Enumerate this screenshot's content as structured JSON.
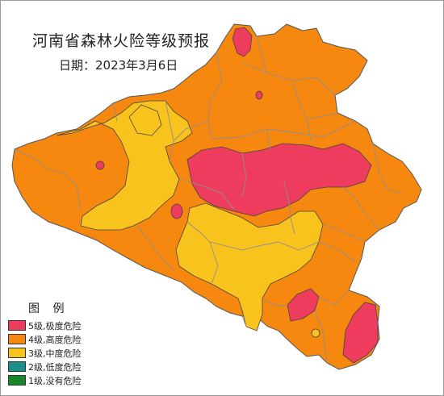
{
  "map": {
    "title": "河南省森林火险等级预报",
    "date_text": "日期：2023年3月6日"
  },
  "legend": {
    "title": "图 例",
    "items": [
      {
        "label": "5级,极度危险",
        "color": "#ee3c5e"
      },
      {
        "label": "4级,高度危险",
        "color": "#f6870f"
      },
      {
        "label": "3级,中度危险",
        "color": "#f8c31c"
      },
      {
        "label": "2级,低度危险",
        "color": "#1a8f8c"
      },
      {
        "label": "1级,没有危险",
        "color": "#17872a"
      }
    ]
  },
  "colors": {
    "level5": "#ee3c5e",
    "level4": "#f6870f",
    "level3": "#f8c31c",
    "boundary": "#8f8f8f"
  }
}
